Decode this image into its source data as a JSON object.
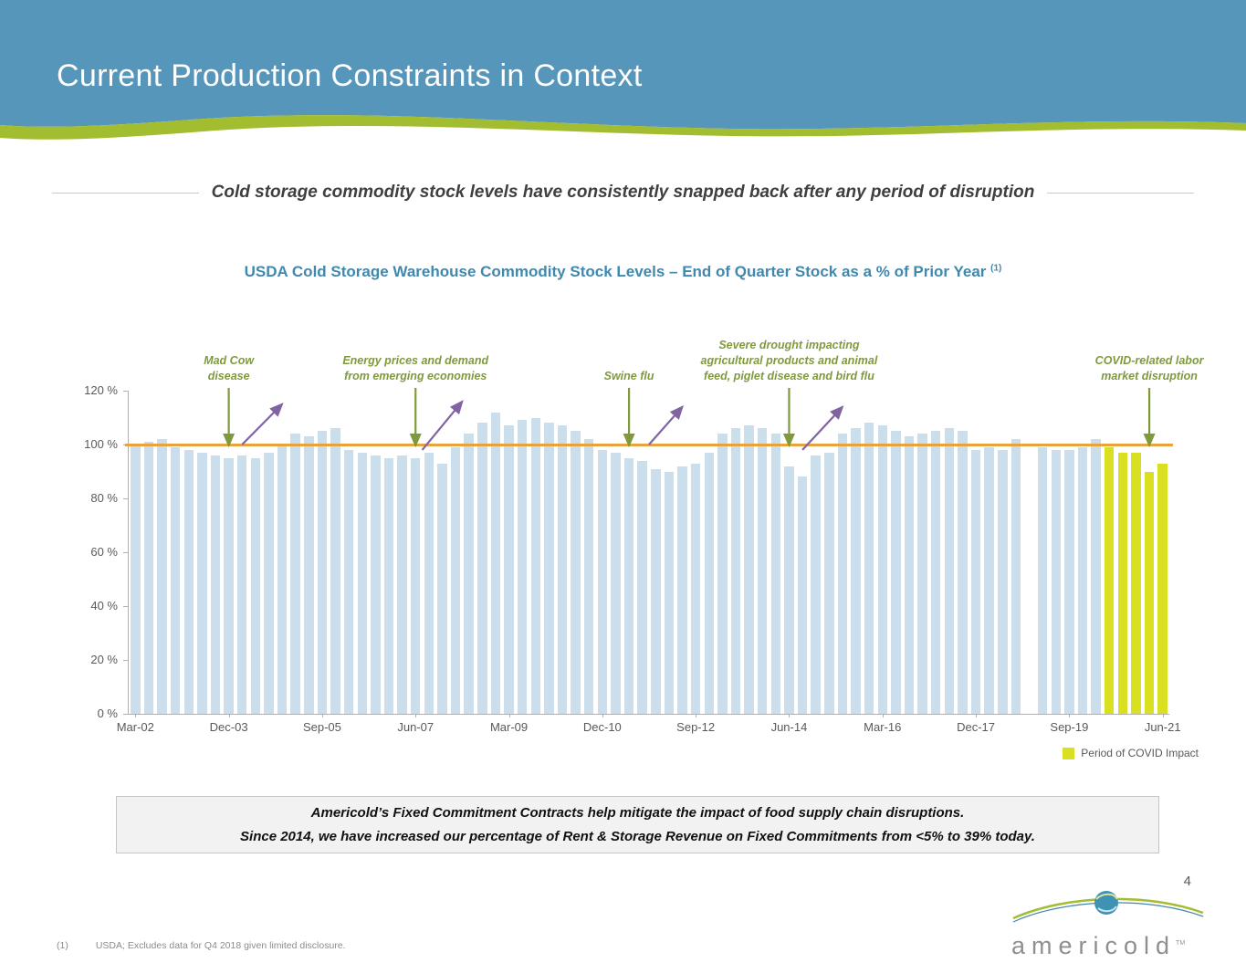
{
  "header": {
    "title": "Current Production Constraints in Context"
  },
  "subtitle": "Cold storage commodity stock levels have consistently snapped back after any period of disruption",
  "chart_title": {
    "text": "USDA Cold Storage Warehouse Commodity Stock Levels – End of Quarter Stock as a % of Prior Year",
    "superscript": "(1)"
  },
  "chart_data": {
    "type": "bar",
    "title": "USDA Cold Storage Warehouse Commodity Stock Levels – End of Quarter Stock as a % of Prior Year (1)",
    "xlabel": "",
    "ylabel": "",
    "ylim": [
      0,
      120
    ],
    "yticks": [
      0,
      20,
      40,
      60,
      80,
      100,
      120
    ],
    "ytick_suffix": " %",
    "grid": false,
    "reference_line": {
      "value": 100,
      "color": "#E8A33D"
    },
    "categories": [
      "Mar-02",
      "Jun-02",
      "Sep-02",
      "Dec-02",
      "Mar-03",
      "Jun-03",
      "Sep-03",
      "Dec-03",
      "Mar-04",
      "Jun-04",
      "Sep-04",
      "Dec-04",
      "Mar-05",
      "Jun-05",
      "Sep-05",
      "Dec-05",
      "Mar-06",
      "Jun-06",
      "Sep-06",
      "Dec-06",
      "Mar-07",
      "Jun-07",
      "Sep-07",
      "Dec-07",
      "Mar-08",
      "Jun-08",
      "Sep-08",
      "Dec-08",
      "Mar-09",
      "Jun-09",
      "Sep-09",
      "Dec-09",
      "Mar-10",
      "Jun-10",
      "Sep-10",
      "Dec-10",
      "Mar-11",
      "Jun-11",
      "Sep-11",
      "Dec-11",
      "Mar-12",
      "Jun-12",
      "Sep-12",
      "Dec-12",
      "Mar-13",
      "Jun-13",
      "Sep-13",
      "Dec-13",
      "Mar-14",
      "Jun-14",
      "Sep-14",
      "Dec-14",
      "Mar-15",
      "Jun-15",
      "Sep-15",
      "Dec-15",
      "Mar-16",
      "Jun-16",
      "Sep-16",
      "Dec-16",
      "Mar-17",
      "Jun-17",
      "Sep-17",
      "Dec-17",
      "Mar-18",
      "Jun-18",
      "Sep-18",
      "Dec-18",
      "Mar-19",
      "Jun-19",
      "Sep-19",
      "Dec-19",
      "Mar-20",
      "Jun-20",
      "Sep-20",
      "Dec-20",
      "Mar-21",
      "Jun-21"
    ],
    "values": [
      100,
      101,
      102,
      99,
      98,
      97,
      96,
      95,
      96,
      95,
      97,
      100,
      104,
      103,
      105,
      106,
      98,
      97,
      96,
      95,
      96,
      95,
      97,
      93,
      99,
      104,
      108,
      112,
      107,
      109,
      110,
      108,
      107,
      105,
      102,
      98,
      97,
      95,
      94,
      91,
      90,
      92,
      93,
      97,
      104,
      106,
      107,
      106,
      104,
      92,
      88,
      96,
      97,
      104,
      106,
      108,
      107,
      105,
      103,
      104,
      105,
      106,
      105,
      98,
      99,
      98,
      102,
      null,
      99,
      98,
      98,
      99,
      102,
      99,
      97,
      97,
      90,
      93
    ],
    "excluded": [
      "Dec-18"
    ],
    "covid_start_index": 73,
    "x_tick_indices": [
      0,
      7,
      14,
      21,
      28,
      35,
      42,
      49,
      56,
      63,
      70,
      77
    ],
    "bar_color": "#CBDEEB",
    "covid_bar_color": "#D9E021",
    "legend": {
      "label": "Period of COVID Impact",
      "color": "#D9E021",
      "position": "bottom-right"
    },
    "annotation_color": "#7F9A3D",
    "recovery_arrow_color": "#8064A2",
    "annotations": [
      {
        "lines": [
          "Mad Cow",
          "disease"
        ],
        "index": 7
      },
      {
        "lines": [
          "Energy prices and demand",
          "from emerging economies"
        ],
        "index": 21
      },
      {
        "lines": [
          "Swine flu"
        ],
        "index": 37
      },
      {
        "lines": [
          "Severe drought impacting",
          "agricultural products and animal",
          "feed, piglet disease and bird flu"
        ],
        "index": 49
      },
      {
        "lines": [
          "COVID-related labor",
          "market disruption"
        ],
        "index": 76
      }
    ],
    "recovery_arrows": [
      {
        "from": {
          "index": 8,
          "pct": 100
        },
        "to": {
          "index": 11,
          "pct": 115
        }
      },
      {
        "from": {
          "index": 21.5,
          "pct": 98
        },
        "to": {
          "index": 24.5,
          "pct": 116
        }
      },
      {
        "from": {
          "index": 38.5,
          "pct": 100
        },
        "to": {
          "index": 41,
          "pct": 114
        }
      },
      {
        "from": {
          "index": 50,
          "pct": 98
        },
        "to": {
          "index": 53,
          "pct": 114
        }
      }
    ]
  },
  "callout": {
    "line1": "Americold’s Fixed Commitment Contracts help mitigate the impact of food supply chain disruptions.",
    "line2": "Since 2014, we have increased our percentage of Rent & Storage Revenue on Fixed Commitments from <5% to 39% today."
  },
  "page_number": "4",
  "footnote": {
    "marker": "(1)",
    "text": "USDA; Excludes data for Q4 2018 given limited disclosure."
  },
  "logo": {
    "text": "americold",
    "tm": "TM"
  },
  "colors": {
    "header_blue": "#5696BA",
    "wave_green": "#A3BD31",
    "title_blue": "#4088AE"
  }
}
